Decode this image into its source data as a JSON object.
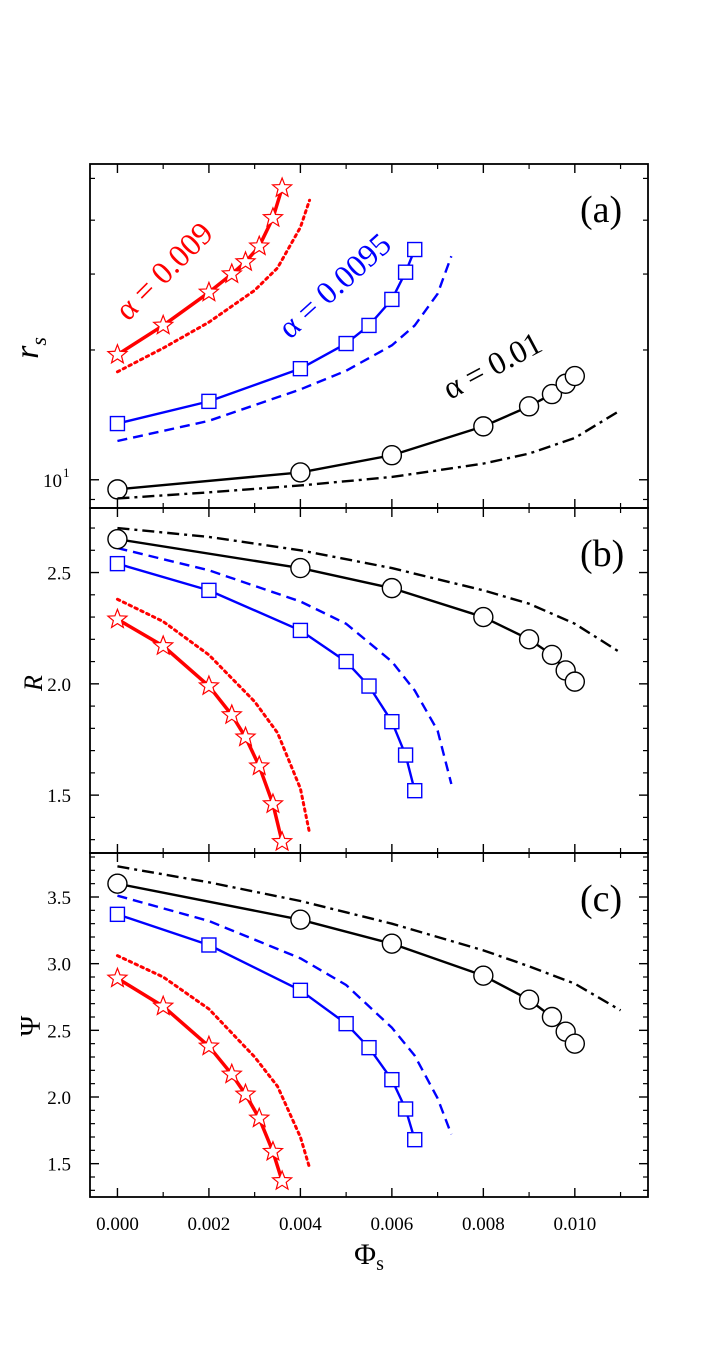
{
  "chart_data": [
    {
      "type": "line",
      "panel": "(a)",
      "ylabel": "r",
      "ylabel_sub": "s",
      "yscale": "log",
      "ylim": [
        8.6,
        54
      ],
      "xlim": [
        -0.0006,
        0.0116
      ],
      "yticks": [
        {
          "value": 10,
          "base": "10",
          "exp": "1"
        }
      ],
      "annotations": [
        {
          "text": "α = 0.009",
          "color": "#ff0000"
        },
        {
          "text": "α = 0.0095",
          "color": "#0000ff"
        },
        {
          "text": "α = 0.01",
          "color": "#000000"
        }
      ],
      "series": [
        {
          "name": "α = 0.009 (stars)",
          "color": "#ff0000",
          "marker": "star",
          "style": "solid",
          "x": [
            0.0,
            0.001,
            0.002,
            0.0025,
            0.0028,
            0.0031,
            0.0034,
            0.0036
          ],
          "y": [
            19.5,
            22.8,
            27.2,
            30.0,
            32.0,
            34.8,
            40.5,
            47.5
          ]
        },
        {
          "name": "α = 0.009 (dotted)",
          "color": "#ff0000",
          "marker": "none",
          "style": "dotted",
          "x": [
            0.0,
            0.001,
            0.002,
            0.003,
            0.0035,
            0.004,
            0.0042
          ],
          "y": [
            17.8,
            20.2,
            23.2,
            27.5,
            31.0,
            38.5,
            44.5
          ]
        },
        {
          "name": "α = 0.0095 (squares)",
          "color": "#0000ff",
          "marker": "square",
          "style": "solid",
          "x": [
            0.0,
            0.002,
            0.004,
            0.005,
            0.0055,
            0.006,
            0.0063,
            0.0065
          ],
          "y": [
            13.5,
            15.2,
            18.1,
            20.7,
            22.8,
            26.2,
            30.3,
            34.2
          ]
        },
        {
          "name": "α = 0.0095 (dashed)",
          "color": "#0000ff",
          "marker": "none",
          "style": "dashed",
          "x": [
            0.0,
            0.002,
            0.004,
            0.005,
            0.006,
            0.0065,
            0.007,
            0.0073
          ],
          "y": [
            12.3,
            13.7,
            16.2,
            17.9,
            20.5,
            22.8,
            27.0,
            33.0
          ]
        },
        {
          "name": "α = 0.01 (circles)",
          "color": "#000000",
          "marker": "circle",
          "style": "solid",
          "x": [
            0.0,
            0.004,
            0.006,
            0.008,
            0.009,
            0.0095,
            0.0098,
            0.01
          ],
          "y": [
            9.5,
            10.4,
            11.4,
            13.3,
            14.8,
            15.8,
            16.7,
            17.4
          ]
        },
        {
          "name": "α = 0.01 (dash-dot)",
          "color": "#000000",
          "marker": "none",
          "style": "dashdot",
          "x": [
            0.0,
            0.002,
            0.004,
            0.006,
            0.008,
            0.009,
            0.01,
            0.011
          ],
          "y": [
            9.05,
            9.35,
            9.7,
            10.15,
            10.9,
            11.5,
            12.5,
            14.5
          ]
        }
      ]
    },
    {
      "type": "line",
      "panel": "(b)",
      "ylabel": "R",
      "ylim": [
        1.24,
        2.79
      ],
      "xlim": [
        -0.0006,
        0.0116
      ],
      "yticks": [
        {
          "value": 1.5,
          "label": "1.5"
        },
        {
          "value": 2.0,
          "label": "2.0"
        },
        {
          "value": 2.5,
          "label": "2.5"
        }
      ],
      "series": [
        {
          "name": "α = 0.009 (stars)",
          "color": "#ff0000",
          "marker": "star",
          "style": "solid",
          "x": [
            0.0,
            0.001,
            0.002,
            0.0025,
            0.0028,
            0.0031,
            0.0034,
            0.0036
          ],
          "y": [
            2.29,
            2.17,
            1.99,
            1.86,
            1.76,
            1.63,
            1.46,
            1.29
          ]
        },
        {
          "name": "α = 0.009 (dotted)",
          "color": "#ff0000",
          "marker": "none",
          "style": "dotted",
          "x": [
            0.0,
            0.001,
            0.002,
            0.003,
            0.0035,
            0.004,
            0.0042
          ],
          "y": [
            2.38,
            2.28,
            2.13,
            1.92,
            1.78,
            1.53,
            1.33
          ]
        },
        {
          "name": "α = 0.0095 (squares)",
          "color": "#0000ff",
          "marker": "square",
          "style": "solid",
          "x": [
            0.0,
            0.002,
            0.004,
            0.005,
            0.0055,
            0.006,
            0.0063,
            0.0065
          ],
          "y": [
            2.54,
            2.42,
            2.24,
            2.1,
            1.99,
            1.83,
            1.68,
            1.52
          ]
        },
        {
          "name": "α = 0.0095 (dashed)",
          "color": "#0000ff",
          "marker": "none",
          "style": "dashed",
          "x": [
            0.0,
            0.002,
            0.004,
            0.005,
            0.006,
            0.0065,
            0.007,
            0.0073
          ],
          "y": [
            2.61,
            2.51,
            2.37,
            2.27,
            2.1,
            1.97,
            1.79,
            1.55
          ]
        },
        {
          "name": "α = 0.01 (circles)",
          "color": "#000000",
          "marker": "circle",
          "style": "solid",
          "x": [
            0.0,
            0.004,
            0.006,
            0.008,
            0.009,
            0.0095,
            0.0098,
            0.01
          ],
          "y": [
            2.65,
            2.52,
            2.43,
            2.3,
            2.2,
            2.13,
            2.06,
            2.01
          ]
        },
        {
          "name": "α = 0.01 (dash-dot)",
          "color": "#000000",
          "marker": "none",
          "style": "dashdot",
          "x": [
            0.0,
            0.002,
            0.004,
            0.006,
            0.008,
            0.009,
            0.01,
            0.011
          ],
          "y": [
            2.7,
            2.66,
            2.6,
            2.52,
            2.42,
            2.36,
            2.27,
            2.14
          ]
        }
      ]
    },
    {
      "type": "line",
      "panel": "(c)",
      "ylabel": "Ψ",
      "xlabel": "Φ",
      "xlabel_sub": "s",
      "ylim": [
        1.25,
        3.83
      ],
      "xlim": [
        -0.0006,
        0.0116
      ],
      "xticks": [
        {
          "value": 0.0,
          "label": "0.000"
        },
        {
          "value": 0.002,
          "label": "0.002"
        },
        {
          "value": 0.004,
          "label": "0.004"
        },
        {
          "value": 0.006,
          "label": "0.006"
        },
        {
          "value": 0.008,
          "label": "0.008"
        },
        {
          "value": 0.01,
          "label": "0.010"
        }
      ],
      "yticks": [
        {
          "value": 1.5,
          "label": "1.5"
        },
        {
          "value": 2.0,
          "label": "2.0"
        },
        {
          "value": 2.5,
          "label": "2.5"
        },
        {
          "value": 3.0,
          "label": "3.0"
        },
        {
          "value": 3.5,
          "label": "3.5"
        }
      ],
      "series": [
        {
          "name": "α = 0.009 (stars)",
          "color": "#ff0000",
          "marker": "star",
          "style": "solid",
          "x": [
            0.0,
            0.001,
            0.002,
            0.0025,
            0.0028,
            0.0031,
            0.0034,
            0.0036
          ],
          "y": [
            2.89,
            2.68,
            2.38,
            2.17,
            2.02,
            1.84,
            1.59,
            1.37
          ]
        },
        {
          "name": "α = 0.009 (dotted)",
          "color": "#ff0000",
          "marker": "none",
          "style": "dotted",
          "x": [
            0.0,
            0.001,
            0.002,
            0.003,
            0.0035,
            0.004,
            0.0042
          ],
          "y": [
            3.06,
            2.9,
            2.66,
            2.3,
            2.08,
            1.7,
            1.47
          ]
        },
        {
          "name": "α = 0.0095 (squares)",
          "color": "#0000ff",
          "marker": "square",
          "style": "solid",
          "x": [
            0.0,
            0.002,
            0.004,
            0.005,
            0.0055,
            0.006,
            0.0063,
            0.0065
          ],
          "y": [
            3.37,
            3.14,
            2.8,
            2.55,
            2.37,
            2.13,
            1.91,
            1.68
          ]
        },
        {
          "name": "α = 0.0095 (dashed)",
          "color": "#0000ff",
          "marker": "none",
          "style": "dashed",
          "x": [
            0.0,
            0.002,
            0.004,
            0.005,
            0.006,
            0.0065,
            0.007,
            0.0073
          ],
          "y": [
            3.51,
            3.32,
            3.04,
            2.84,
            2.52,
            2.31,
            1.99,
            1.72
          ]
        },
        {
          "name": "α = 0.01 (circles)",
          "color": "#000000",
          "marker": "circle",
          "style": "solid",
          "x": [
            0.0,
            0.004,
            0.006,
            0.008,
            0.009,
            0.0095,
            0.0098,
            0.01
          ],
          "y": [
            3.6,
            3.33,
            3.15,
            2.91,
            2.73,
            2.6,
            2.49,
            2.4
          ]
        },
        {
          "name": "α = 0.01 (dash-dot)",
          "color": "#000000",
          "marker": "none",
          "style": "dashdot",
          "x": [
            0.0,
            0.002,
            0.004,
            0.006,
            0.008,
            0.009,
            0.01,
            0.011
          ],
          "y": [
            3.73,
            3.61,
            3.47,
            3.3,
            3.1,
            2.98,
            2.85,
            2.65
          ]
        }
      ]
    }
  ]
}
